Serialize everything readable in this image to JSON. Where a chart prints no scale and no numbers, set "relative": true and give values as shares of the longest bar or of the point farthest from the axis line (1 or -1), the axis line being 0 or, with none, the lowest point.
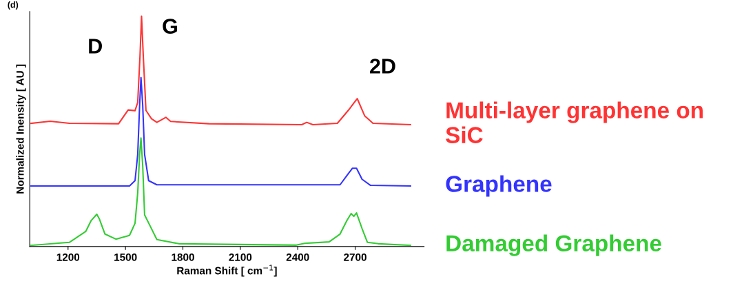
{
  "chart_data": {
    "type": "line",
    "relative": true,
    "xlabel": "Raman Shift [ cm$^{−1}$]",
    "ylabel": "Normalized Inensity [ AU ]",
    "xlim": [
      1000,
      3060
    ],
    "xticks": [
      1200,
      1500,
      1800,
      2100,
      2400,
      2700
    ],
    "grid": false,
    "legend": false,
    "tick_labels": "x",
    "annotations": [
      "(d)",
      "D",
      "G",
      "2D"
    ],
    "series": [
      {
        "name": "Multi-layer graphene on SiC",
        "color": "#ff3333",
        "x": [
          1007,
          1107,
          1207,
          1464,
          1514,
          1550,
          1564,
          1576,
          1584,
          1593,
          1607,
          1636,
          1664,
          1711,
          1736,
          1936,
          2421,
          2447,
          2479,
          2607,
          2664,
          2711,
          2750,
          2793,
          2989
        ],
        "values": [
          0.535,
          0.544,
          0.535,
          0.533,
          0.593,
          0.59,
          0.626,
          0.829,
          1.0,
          0.829,
          0.591,
          0.555,
          0.539,
          0.561,
          0.543,
          0.533,
          0.529,
          0.539,
          0.529,
          0.535,
          0.591,
          0.642,
          0.567,
          0.535,
          0.529
        ]
      },
      {
        "name": "Graphene",
        "color": "#3333ff",
        "x": [
          1007,
          1521,
          1550,
          1564,
          1574,
          1581,
          1590,
          1600,
          1621,
          1664,
          2621,
          2664,
          2686,
          2707,
          2736,
          2779,
          2989
        ],
        "values": [
          0.263,
          0.263,
          0.286,
          0.4,
          0.615,
          0.734,
          0.615,
          0.4,
          0.286,
          0.268,
          0.268,
          0.316,
          0.34,
          0.34,
          0.292,
          0.266,
          0.263
        ]
      },
      {
        "name": "Damaged Graphene",
        "color": "#33cc33",
        "x": [
          1007,
          1207,
          1293,
          1321,
          1350,
          1364,
          1393,
          1450,
          1521,
          1550,
          1564,
          1574,
          1581,
          1590,
          1600,
          1629,
          1664,
          1779,
          2393,
          2436,
          2564,
          2621,
          2657,
          2679,
          2693,
          2707,
          2736,
          2764,
          2821,
          2989
        ],
        "values": [
          0.005,
          0.018,
          0.066,
          0.113,
          0.14,
          0.119,
          0.054,
          0.032,
          0.048,
          0.101,
          0.233,
          0.4,
          0.471,
          0.352,
          0.137,
          0.089,
          0.03,
          0.012,
          0.006,
          0.014,
          0.02,
          0.054,
          0.113,
          0.143,
          0.131,
          0.146,
          0.078,
          0.018,
          0.012,
          0.005
        ]
      }
    ]
  }
}
